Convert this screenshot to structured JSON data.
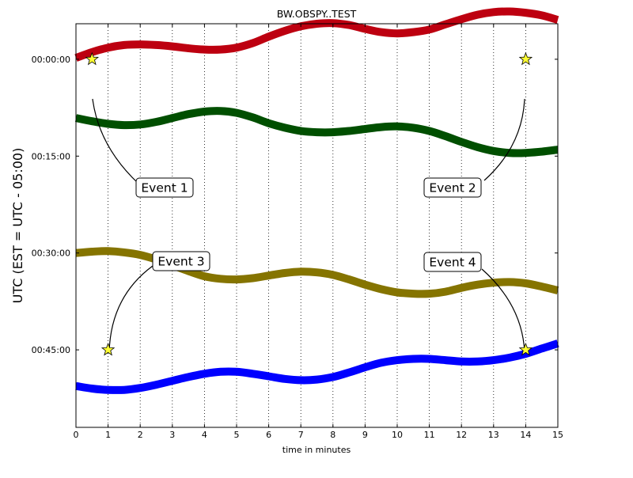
{
  "chart_data": {
    "type": "line",
    "title": "BW.OBSPY..TEST",
    "xlabel": "time in minutes",
    "ylabel": "UTC (EST = UTC - 05:00)",
    "xlim": [
      0,
      15
    ],
    "ylim_minutes": [
      -5.5,
      57
    ],
    "x_ticks": [
      0,
      1,
      2,
      3,
      4,
      5,
      6,
      7,
      8,
      9,
      10,
      11,
      12,
      13,
      14,
      15
    ],
    "y_ticks": [
      {
        "value": 0,
        "label": "00:00:00"
      },
      {
        "value": 15,
        "label": "00:15:00"
      },
      {
        "value": 30,
        "label": "00:30:00"
      },
      {
        "value": 45,
        "label": "00:45:00"
      }
    ],
    "grid": "vertical dotted at each minute",
    "series": [
      {
        "color": "#bd0010",
        "x": [
          0,
          0.5,
          1,
          1.5,
          2,
          2.5,
          3,
          3.5,
          4,
          4.5,
          5,
          5.5,
          6,
          6.5,
          7,
          7.5,
          8,
          8.5,
          9,
          9.5,
          10,
          10.5,
          11,
          11.5,
          12,
          12.5,
          13,
          13.5,
          14,
          14.5,
          15
        ],
        "y": [
          -0.2,
          -1.1,
          -1.8,
          -2.2,
          -2.3,
          -2.2,
          -2.0,
          -1.7,
          -1.5,
          -1.5,
          -1.8,
          -2.5,
          -3.5,
          -4.4,
          -5.1,
          -5.5,
          -5.6,
          -5.3,
          -4.7,
          -4.2,
          -4.0,
          -4.2,
          -4.6,
          -5.4,
          -6.2,
          -6.9,
          -7.3,
          -7.4,
          -7.2,
          -6.8,
          -6.1
        ]
      },
      {
        "color": "#004f00",
        "x": [
          0,
          0.5,
          1,
          1.5,
          2,
          2.5,
          3,
          3.5,
          4,
          4.5,
          5,
          5.5,
          6,
          6.5,
          7,
          7.5,
          8,
          8.5,
          9,
          9.5,
          10,
          10.5,
          11,
          11.5,
          12,
          12.5,
          13,
          13.5,
          14,
          14.5,
          15
        ],
        "y": [
          9.1,
          9.6,
          10.0,
          10.2,
          10.1,
          9.7,
          9.1,
          8.5,
          8.1,
          8.0,
          8.3,
          9.0,
          9.9,
          10.6,
          11.1,
          11.3,
          11.3,
          11.1,
          10.8,
          10.5,
          10.4,
          10.6,
          11.1,
          11.9,
          12.8,
          13.6,
          14.2,
          14.5,
          14.5,
          14.3,
          14.0
        ]
      },
      {
        "color": "#857400",
        "x": [
          0,
          0.5,
          1,
          1.5,
          2,
          2.5,
          3,
          3.5,
          4,
          4.5,
          5,
          5.5,
          6,
          6.5,
          7,
          7.5,
          8,
          8.5,
          9,
          9.5,
          10,
          10.5,
          11,
          11.5,
          12,
          12.5,
          13,
          13.5,
          14,
          14.5,
          15
        ],
        "y": [
          30.0,
          29.8,
          29.7,
          29.9,
          30.3,
          31.0,
          31.9,
          32.8,
          33.6,
          34.0,
          34.1,
          33.9,
          33.5,
          33.1,
          32.9,
          33.0,
          33.4,
          34.1,
          34.9,
          35.6,
          36.1,
          36.3,
          36.3,
          36.0,
          35.4,
          34.9,
          34.6,
          34.5,
          34.7,
          35.2,
          35.8
        ]
      },
      {
        "color": "#0000ff",
        "x": [
          0,
          0.5,
          1,
          1.5,
          2,
          2.5,
          3,
          3.5,
          4,
          4.5,
          5,
          5.5,
          6,
          6.5,
          7,
          7.5,
          8,
          8.5,
          9,
          9.5,
          10,
          10.5,
          11,
          11.5,
          12,
          12.5,
          13,
          13.5,
          14,
          14.5,
          15
        ],
        "y": [
          50.6,
          51.0,
          51.2,
          51.2,
          50.9,
          50.4,
          49.8,
          49.2,
          48.7,
          48.4,
          48.4,
          48.7,
          49.1,
          49.5,
          49.7,
          49.6,
          49.2,
          48.5,
          47.7,
          47.0,
          46.6,
          46.4,
          46.4,
          46.6,
          46.8,
          46.8,
          46.6,
          46.2,
          45.6,
          44.8,
          44.0
        ]
      }
    ],
    "events": [
      {
        "label": "Event 1",
        "x": 0.5,
        "y": 0
      },
      {
        "label": "Event 2",
        "x": 14,
        "y": 0
      },
      {
        "label": "Event 3",
        "x": 1,
        "y": 45
      },
      {
        "label": "Event 4",
        "x": 14,
        "y": 45
      }
    ],
    "marker_color": "#ffff33"
  }
}
